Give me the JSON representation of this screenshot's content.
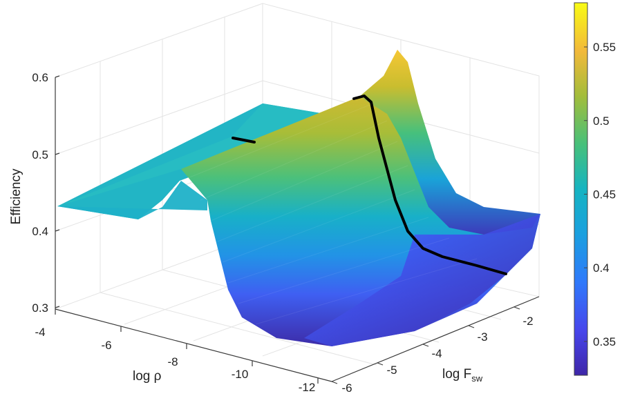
{
  "chart_data": {
    "type": "surface",
    "title": "",
    "xlabel": "log ρ",
    "ylabel": "log F",
    "ylabel_subscript": "sw",
    "zlabel": "Efficiency",
    "x_ticks": [
      "-4",
      "-6",
      "-8",
      "-10",
      "-12"
    ],
    "y_ticks": [
      "-6",
      "-5",
      "-4",
      "-3",
      "-2"
    ],
    "z_ticks": [
      "0.3",
      "0.4",
      "0.5",
      "0.6"
    ],
    "xlim": [
      -12,
      -4
    ],
    "ylim": [
      -6,
      -1.5
    ],
    "zlim": [
      0.3,
      0.6
    ],
    "colorbar": {
      "ticks": [
        "0.35",
        "0.4",
        "0.45",
        "0.5",
        "0.55"
      ],
      "range": [
        0.327,
        0.58
      ],
      "colormap": "parula"
    },
    "grid": true,
    "black_curve": {
      "description_free": true,
      "points": [
        [
          -8.0,
          -6.0,
          0.52
        ],
        [
          -9.2,
          -4.0,
          0.58
        ],
        [
          -9.8,
          -3.5,
          0.52
        ],
        [
          -10.4,
          -3.0,
          0.4
        ],
        [
          -11.0,
          -2.5,
          0.36
        ],
        [
          -12.0,
          -1.6,
          0.34
        ]
      ]
    },
    "colors": {
      "surface_low": "#3e26a8",
      "surface_high": "#f9fb15",
      "curve": "#000000"
    }
  }
}
